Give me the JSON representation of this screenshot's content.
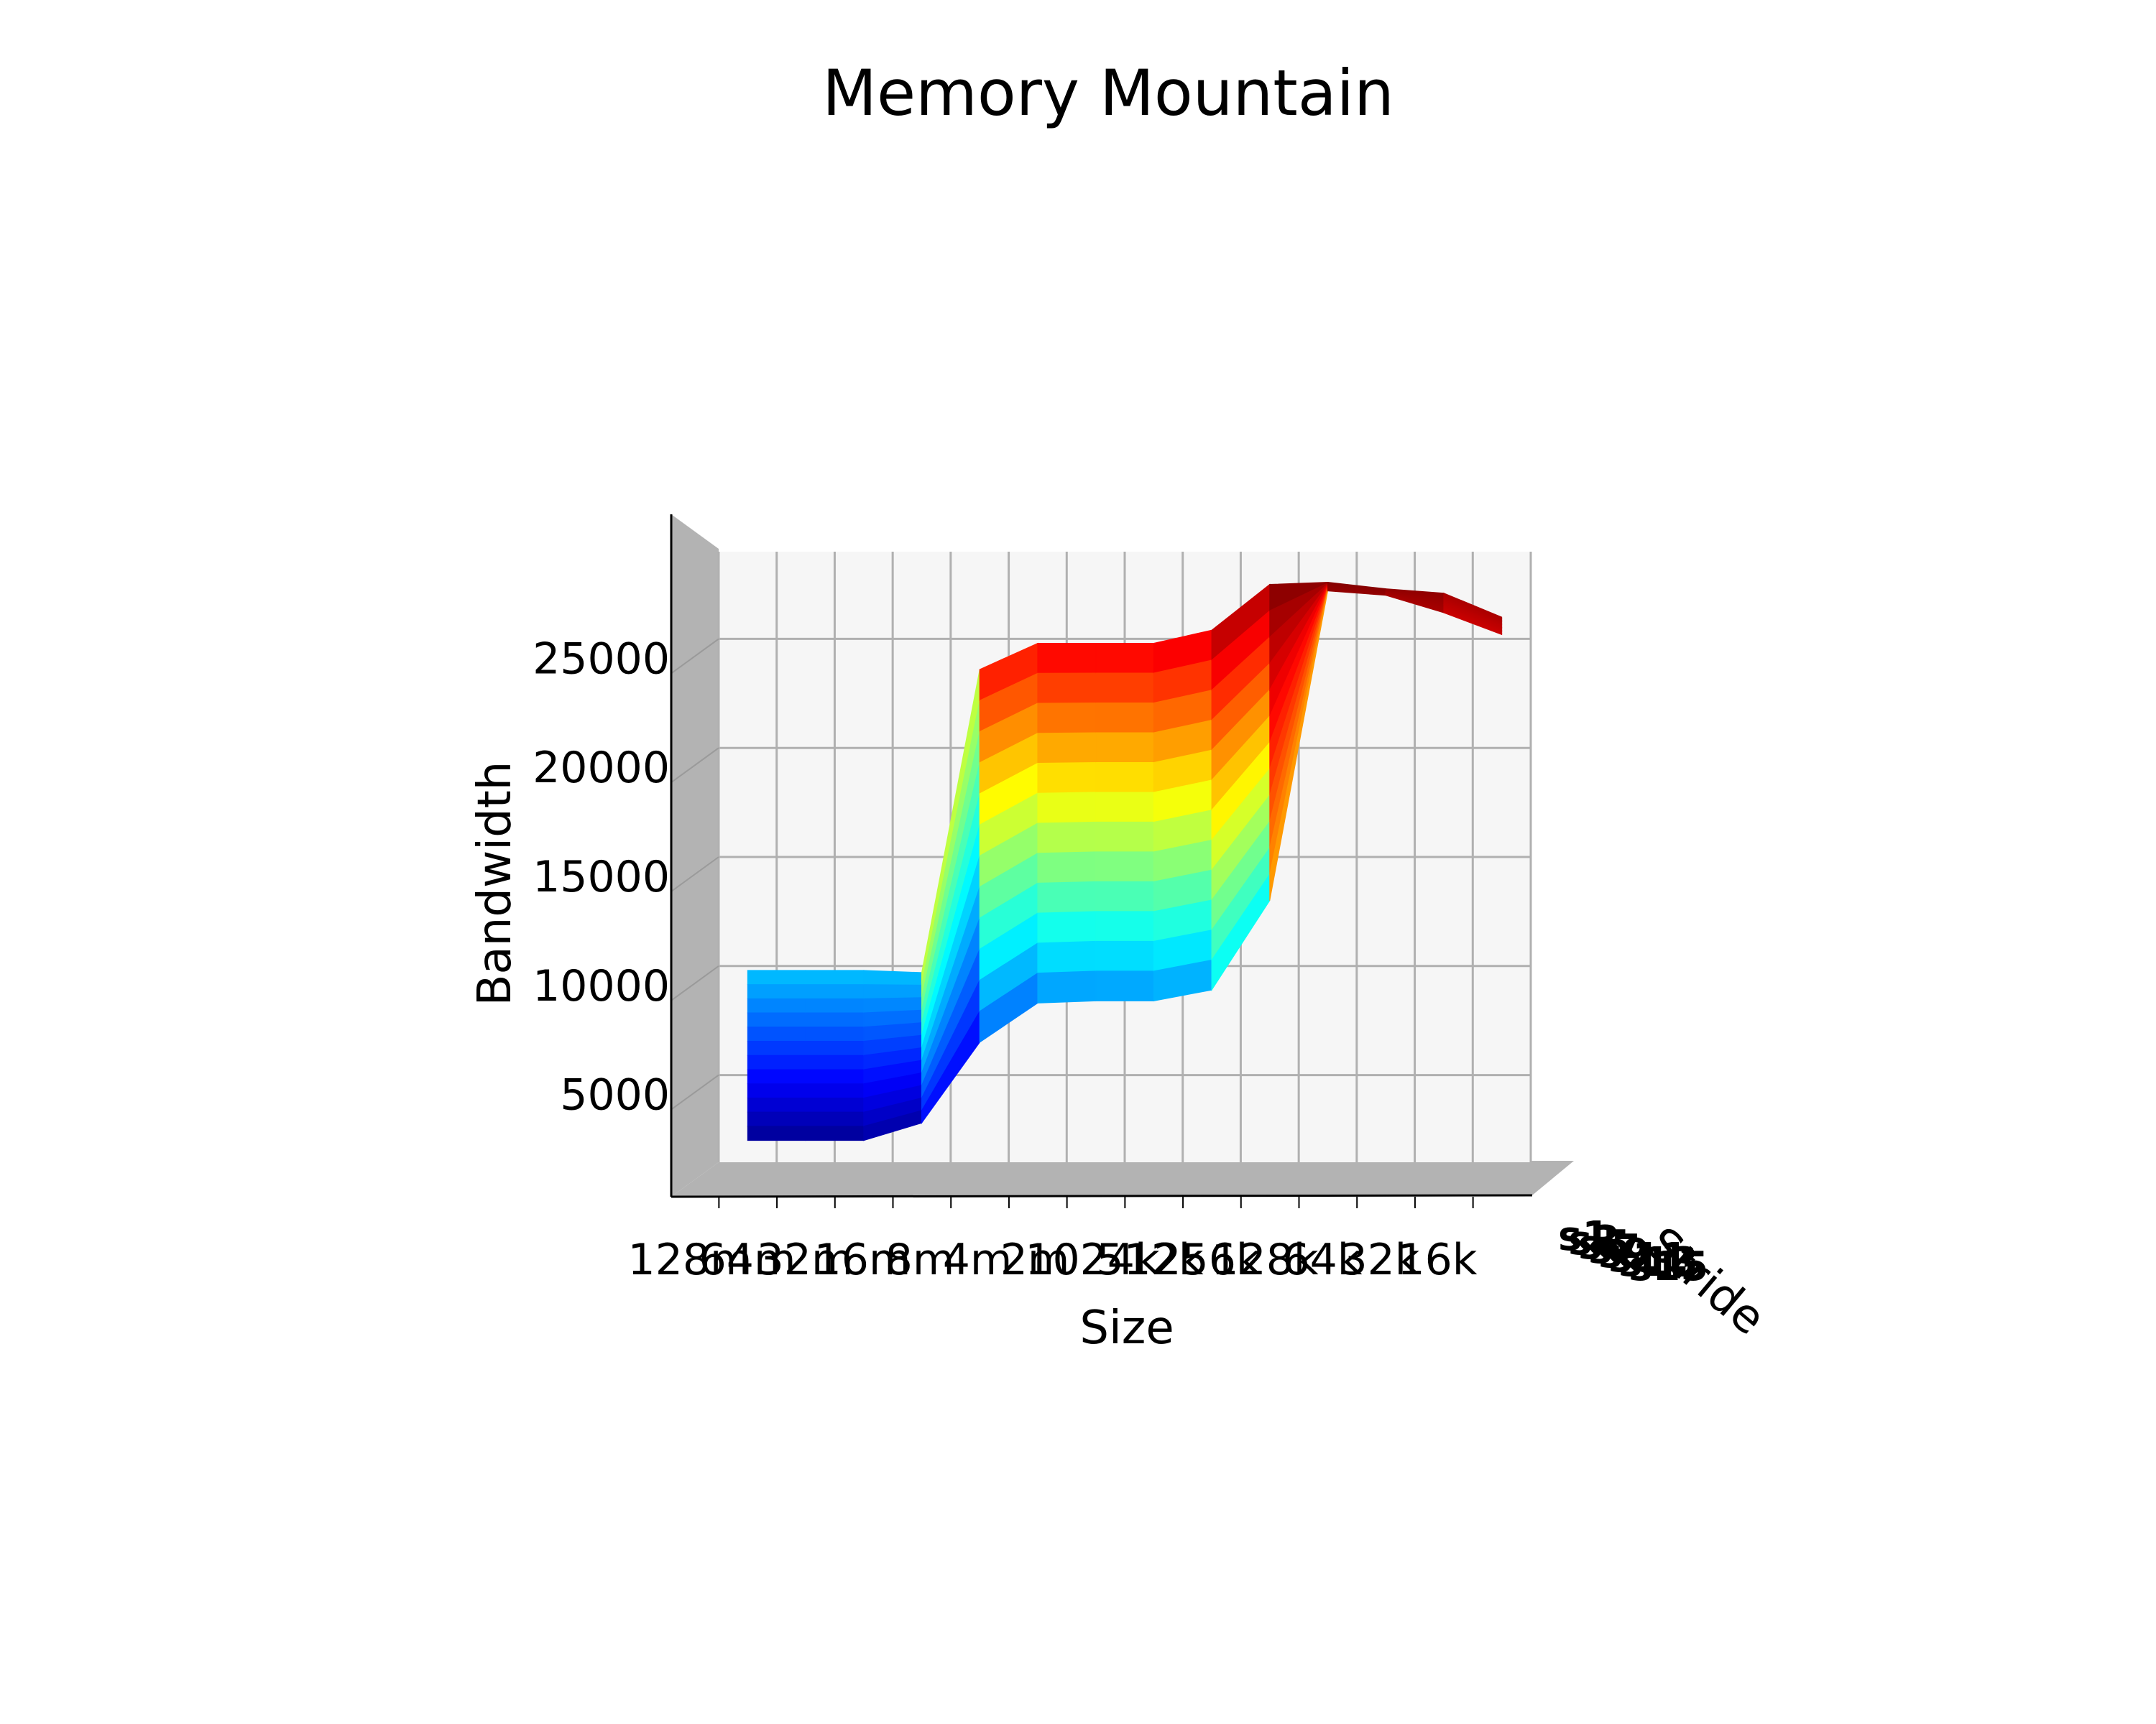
{
  "chart_data": {
    "type": "surface3d",
    "title": "Memory Mountain",
    "xlabel": "Size",
    "ylabel": "Stride",
    "zlabel": "Bandwidth",
    "zlim": [
      1000,
      29000
    ],
    "z_ticks": [
      "5000",
      "10000",
      "15000",
      "20000",
      "25000"
    ],
    "z_tick_values": [
      5000,
      10000,
      15000,
      20000,
      25000
    ],
    "size_ticks": [
      "128m",
      "64m",
      "32m",
      "16m",
      "8m",
      "4m",
      "2m",
      "1024k",
      "512k",
      "256k",
      "128k",
      "64k",
      "32k",
      "16k"
    ],
    "stride_ticks": [
      "s1",
      "s3",
      "s5",
      "s7",
      "s9",
      "s11",
      "s13",
      "s15"
    ],
    "colormap": "jet",
    "grid": true,
    "ridge_stride1": [
      9800,
      9800,
      9800,
      9700,
      23600,
      24800,
      24800,
      24800,
      25400,
      27500,
      27600,
      27300,
      27100,
      26000
    ],
    "front_stride_last": [
      2000,
      2000,
      2000,
      2800,
      6500,
      8300,
      8400,
      8400,
      8900,
      13000,
      27200,
      27000,
      26200,
      25200
    ]
  }
}
